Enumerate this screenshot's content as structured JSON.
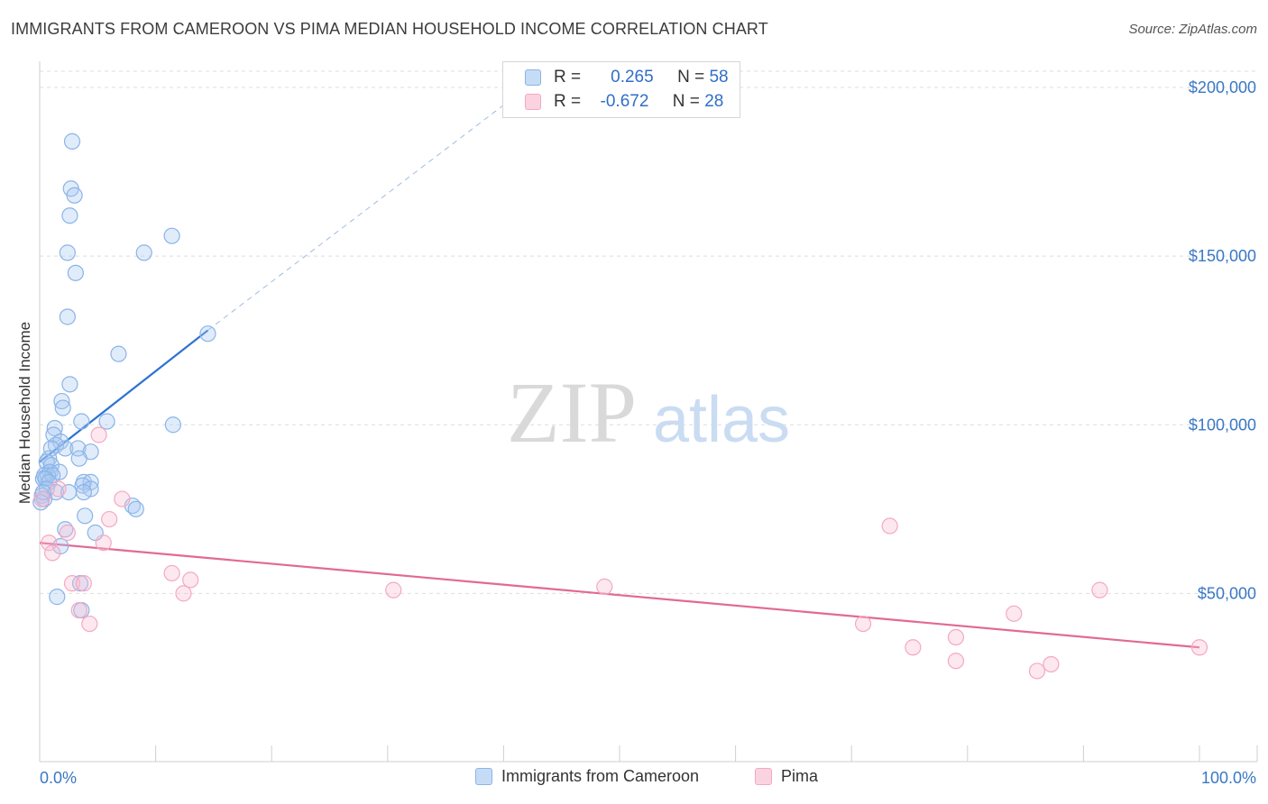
{
  "title": "IMMIGRANTS FROM CAMEROON VS PIMA MEDIAN HOUSEHOLD INCOME CORRELATION CHART",
  "source": "Source: ZipAtlas.com",
  "watermark": {
    "zip": "ZIP",
    "atlas": "atlas"
  },
  "legend_top": {
    "rows": [
      {
        "r_label": "R =",
        "r_value": "0.265",
        "n_label": "N =",
        "n_value": "58"
      },
      {
        "r_label": "R =",
        "r_value": "-0.672",
        "n_label": "N =",
        "n_value": "28"
      }
    ]
  },
  "chart_data": {
    "type": "scatter",
    "ylabel": "Median Household Income",
    "xlim": [
      0,
      100
    ],
    "ylim": [
      0,
      210000
    ],
    "x_tick_labels": [
      "0.0%",
      "100.0%"
    ],
    "y_ticks": [
      50000,
      100000,
      150000,
      200000
    ],
    "y_tick_labels": [
      "$50,000",
      "$100,000",
      "$150,000",
      "$200,000"
    ],
    "grid": true,
    "legend_position": "bottom",
    "series": [
      {
        "name": "Immigrants from Cameroon",
        "color": "#8ab4e8",
        "line_color": "#2c73d2",
        "r": 0.265,
        "n": 58,
        "trend": {
          "x": [
            0,
            14.5
          ],
          "y": [
            89000,
            128000
          ],
          "extended_x_end": 42,
          "extended_y_end": 200000
        },
        "points": [
          {
            "x": 2.8,
            "y": 184000
          },
          {
            "x": 2.7,
            "y": 170000
          },
          {
            "x": 3.0,
            "y": 168000
          },
          {
            "x": 2.6,
            "y": 162000
          },
          {
            "x": 11.4,
            "y": 156000
          },
          {
            "x": 2.4,
            "y": 151000
          },
          {
            "x": 9.0,
            "y": 151000
          },
          {
            "x": 3.1,
            "y": 145000
          },
          {
            "x": 2.4,
            "y": 132000
          },
          {
            "x": 14.5,
            "y": 127000
          },
          {
            "x": 6.8,
            "y": 121000
          },
          {
            "x": 2.6,
            "y": 112000
          },
          {
            "x": 1.9,
            "y": 107000
          },
          {
            "x": 2.0,
            "y": 105000
          },
          {
            "x": 3.6,
            "y": 101000
          },
          {
            "x": 5.8,
            "y": 101000
          },
          {
            "x": 11.5,
            "y": 100000
          },
          {
            "x": 1.3,
            "y": 99000
          },
          {
            "x": 1.2,
            "y": 97000
          },
          {
            "x": 1.8,
            "y": 95000
          },
          {
            "x": 1.4,
            "y": 94000
          },
          {
            "x": 1.0,
            "y": 93000
          },
          {
            "x": 2.2,
            "y": 93000
          },
          {
            "x": 3.3,
            "y": 93000
          },
          {
            "x": 4.4,
            "y": 92000
          },
          {
            "x": 0.8,
            "y": 90000
          },
          {
            "x": 3.4,
            "y": 90000
          },
          {
            "x": 0.6,
            "y": 89000
          },
          {
            "x": 1.0,
            "y": 88000
          },
          {
            "x": 0.9,
            "y": 86000
          },
          {
            "x": 1.7,
            "y": 86000
          },
          {
            "x": 0.4,
            "y": 85000
          },
          {
            "x": 0.7,
            "y": 85000
          },
          {
            "x": 1.1,
            "y": 85000
          },
          {
            "x": 0.3,
            "y": 84000
          },
          {
            "x": 0.5,
            "y": 84000
          },
          {
            "x": 0.8,
            "y": 83000
          },
          {
            "x": 3.8,
            "y": 83000
          },
          {
            "x": 4.4,
            "y": 83000
          },
          {
            "x": 3.7,
            "y": 82000
          },
          {
            "x": 0.6,
            "y": 81000
          },
          {
            "x": 4.4,
            "y": 81000
          },
          {
            "x": 1.4,
            "y": 80000
          },
          {
            "x": 2.5,
            "y": 80000
          },
          {
            "x": 3.8,
            "y": 80000
          },
          {
            "x": 0.2,
            "y": 79000
          },
          {
            "x": 0.4,
            "y": 78000
          },
          {
            "x": 0.1,
            "y": 77000
          },
          {
            "x": 8.0,
            "y": 76000
          },
          {
            "x": 8.3,
            "y": 75000
          },
          {
            "x": 3.9,
            "y": 73000
          },
          {
            "x": 2.2,
            "y": 69000
          },
          {
            "x": 4.8,
            "y": 68000
          },
          {
            "x": 1.8,
            "y": 64000
          },
          {
            "x": 3.5,
            "y": 53000
          },
          {
            "x": 1.5,
            "y": 49000
          },
          {
            "x": 3.6,
            "y": 45000
          },
          {
            "x": 0.3,
            "y": 80000
          }
        ]
      },
      {
        "name": "Pima",
        "color": "#f4a8c2",
        "line_color": "#e16a94",
        "r": -0.672,
        "n": 28,
        "trend": {
          "x": [
            0,
            100
          ],
          "y": [
            65000,
            34000
          ]
        },
        "points": [
          {
            "x": 5.1,
            "y": 97000
          },
          {
            "x": 1.6,
            "y": 81000
          },
          {
            "x": 7.1,
            "y": 78000
          },
          {
            "x": 6.0,
            "y": 72000
          },
          {
            "x": 2.4,
            "y": 68000
          },
          {
            "x": 5.5,
            "y": 65000
          },
          {
            "x": 0.8,
            "y": 65000
          },
          {
            "x": 1.1,
            "y": 62000
          },
          {
            "x": 11.4,
            "y": 56000
          },
          {
            "x": 13.0,
            "y": 54000
          },
          {
            "x": 2.8,
            "y": 53000
          },
          {
            "x": 3.8,
            "y": 53000
          },
          {
            "x": 12.4,
            "y": 50000
          },
          {
            "x": 30.5,
            "y": 51000
          },
          {
            "x": 48.7,
            "y": 52000
          },
          {
            "x": 73.3,
            "y": 70000
          },
          {
            "x": 91.4,
            "y": 51000
          },
          {
            "x": 3.4,
            "y": 45000
          },
          {
            "x": 4.3,
            "y": 41000
          },
          {
            "x": 71.0,
            "y": 41000
          },
          {
            "x": 84.0,
            "y": 44000
          },
          {
            "x": 79.0,
            "y": 37000
          },
          {
            "x": 75.3,
            "y": 34000
          },
          {
            "x": 79.0,
            "y": 30000
          },
          {
            "x": 100.0,
            "y": 34000
          },
          {
            "x": 87.2,
            "y": 29000
          },
          {
            "x": 86.0,
            "y": 27000
          },
          {
            "x": 0.2,
            "y": 78000
          }
        ]
      }
    ]
  }
}
